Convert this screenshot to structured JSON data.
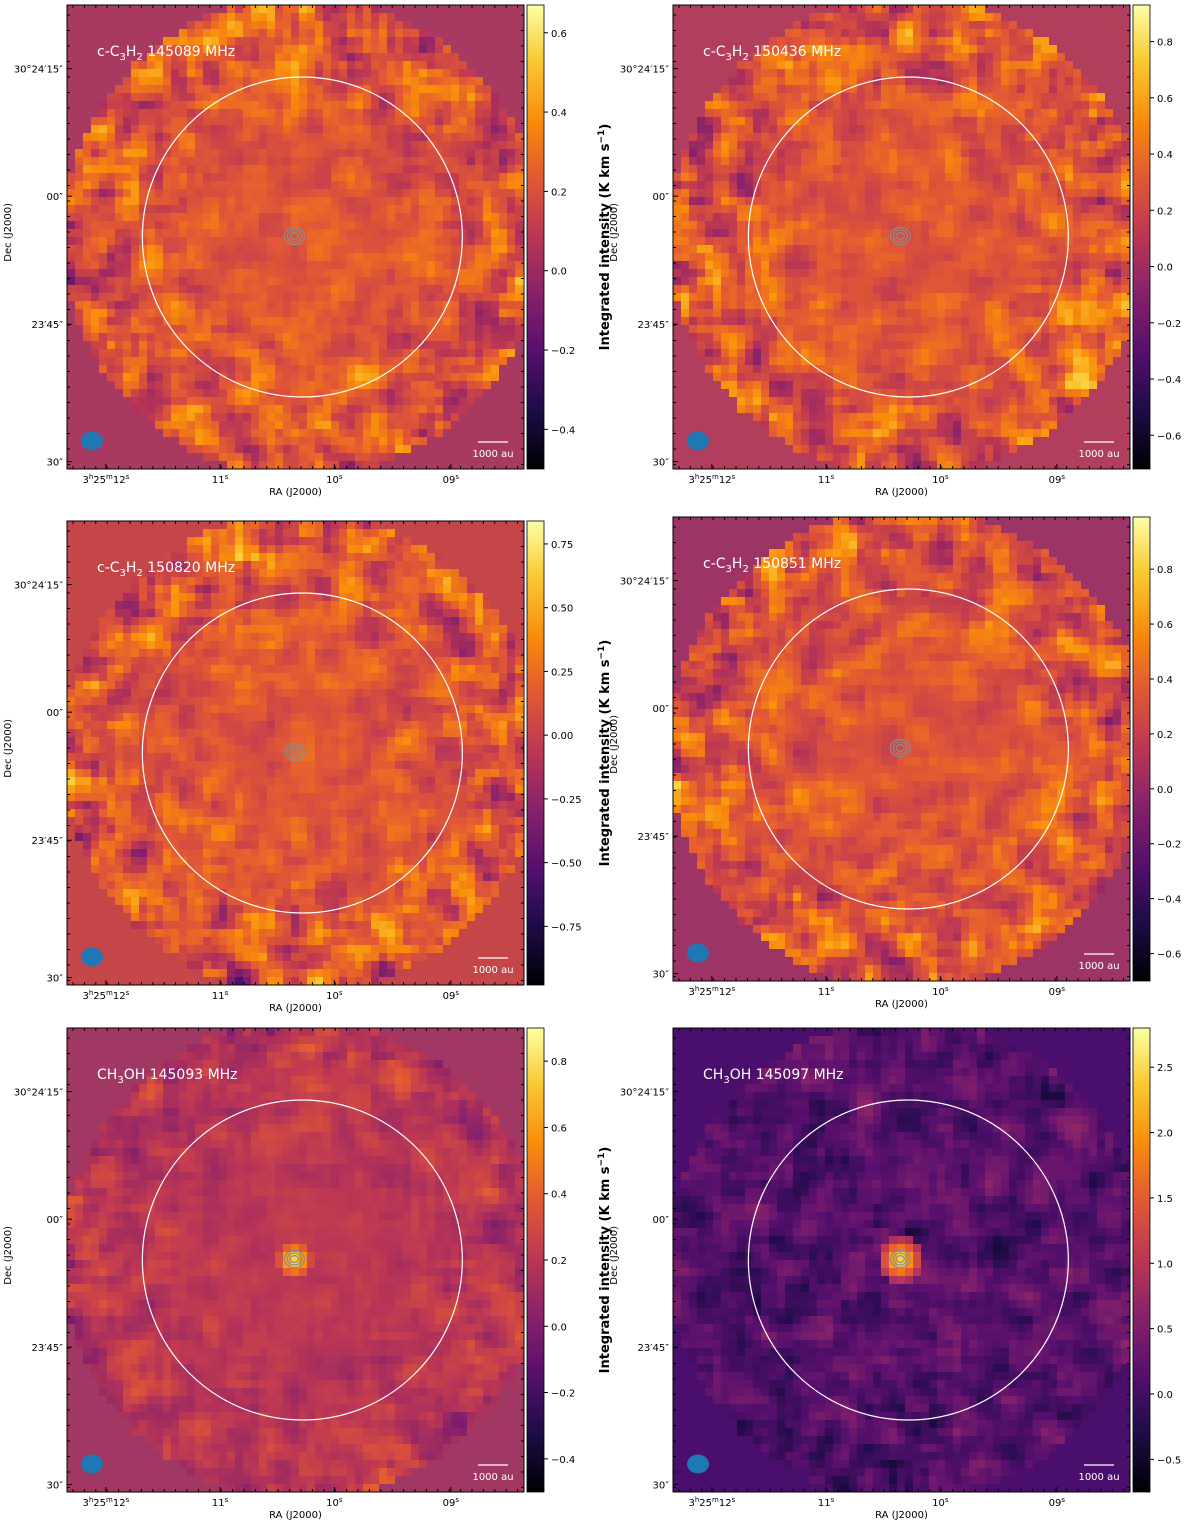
{
  "chart_data": [
    {
      "type": "heatmap",
      "title": "c-C3H2 145089 MHz",
      "species": "c-C",
      "sub1": "3",
      "mid": "H",
      "sub2": "2",
      "freq": " 145089 MHz",
      "cb_ticks": [
        0.6,
        0.4,
        0.2,
        0.0,
        -0.2,
        -0.4
      ],
      "cb_tick_labels": [
        "0.6",
        "0.4",
        "0.2",
        "0.0",
        "−0.2",
        "−0.4"
      ],
      "cb_range": [
        -0.5,
        0.67
      ],
      "bg_color": "#a83a62",
      "compact_source": false
    },
    {
      "type": "heatmap",
      "title": "c-C3H2 150436 MHz",
      "species": "c-C",
      "sub1": "3",
      "mid": "H",
      "sub2": "2",
      "freq": " 150436 MHz",
      "cb_ticks": [
        0.8,
        0.6,
        0.4,
        0.2,
        0.0,
        -0.2,
        -0.4,
        -0.6
      ],
      "cb_tick_labels": [
        "0.8",
        "0.6",
        "0.4",
        "0.2",
        "0.0",
        "−0.2",
        "−0.4",
        "−0.6"
      ],
      "cb_range": [
        -0.72,
        0.93
      ],
      "bg_color": "#b03e5c",
      "compact_source": false
    },
    {
      "type": "heatmap",
      "title": "c-C3H2 150820 MHz",
      "species": "c-C",
      "sub1": "3",
      "mid": "H",
      "sub2": "2",
      "freq": " 150820 MHz",
      "cb_ticks": [
        0.75,
        0.5,
        0.25,
        0.0,
        -0.25,
        -0.5,
        -0.75
      ],
      "cb_tick_labels": [
        "0.75",
        "0.50",
        "0.25",
        "0.00",
        "−0.25",
        "−0.50",
        "−0.75"
      ],
      "cb_range": [
        -0.98,
        0.84
      ],
      "bg_color": "#c54648",
      "compact_source": false
    },
    {
      "type": "heatmap",
      "title": "c-C3H2 150851 MHz",
      "species": "c-C",
      "sub1": "3",
      "mid": "H",
      "sub2": "2",
      "freq": " 150851 MHz",
      "cb_ticks": [
        0.8,
        0.6,
        0.4,
        0.2,
        0.0,
        -0.2,
        -0.4,
        -0.6
      ],
      "cb_tick_labels": [
        "0.8",
        "0.6",
        "0.4",
        "0.2",
        "0.0",
        "−0.2",
        "−0.4",
        "−0.6"
      ],
      "cb_range": [
        -0.7,
        0.99
      ],
      "bg_color": "#9c3566",
      "compact_source": false
    },
    {
      "type": "heatmap",
      "title": "CH3OH 145093 MHz",
      "species": "CH",
      "sub1": "3",
      "mid": "OH",
      "sub2": "",
      "freq": " 145093 MHz",
      "cb_ticks": [
        0.8,
        0.6,
        0.4,
        0.2,
        0.0,
        -0.2,
        -0.4
      ],
      "cb_tick_labels": [
        "0.8",
        "0.6",
        "0.4",
        "0.2",
        "0.0",
        "−0.2",
        "−0.4"
      ],
      "cb_range": [
        -0.5,
        0.9
      ],
      "bg_color": "#a03863",
      "compact_source": true
    },
    {
      "type": "heatmap",
      "title": "CH3OH 145097 MHz",
      "species": "CH",
      "sub1": "3",
      "mid": "OH",
      "sub2": "",
      "freq": " 145097 MHz",
      "cb_ticks": [
        2.5,
        2.0,
        1.5,
        1.0,
        0.5,
        0.0,
        -0.5
      ],
      "cb_tick_labels": [
        "2.5",
        "2.0",
        "1.5",
        "1.0",
        "0.5",
        "0.0",
        "−0.5"
      ],
      "cb_range": [
        -0.75,
        2.8
      ],
      "bg_color": "#4a0f6c",
      "compact_source": true
    }
  ],
  "axes": {
    "xlabel": "RA (J2000)",
    "ylabel": "Dec (J2000)",
    "x_ticks": [
      {
        "h": "3",
        "hs": "h",
        "m": "25",
        "ms": "m",
        "s": "12",
        "ss": "s"
      },
      {
        "h": "",
        "hs": "",
        "m": "",
        "ms": "",
        "s": "11",
        "ss": "s"
      },
      {
        "h": "",
        "hs": "",
        "m": "",
        "ms": "",
        "s": "10",
        "ss": "s"
      },
      {
        "h": "",
        "hs": "",
        "m": "",
        "ms": "",
        "s": "09",
        "ss": "s"
      }
    ],
    "y_ticks": [
      "30°24′15″",
      "00″",
      "23′45″",
      "30″"
    ]
  },
  "colorbar_label": "Integrated intensity (K km s",
  "colorbar_label_unit_sup": "−1",
  "colorbar_label_close": ")",
  "scale_bar_label": "1000 au",
  "colors": {
    "beam": "#1f77b4",
    "contour": "#8c8c8c",
    "circle": "#ffffff"
  }
}
